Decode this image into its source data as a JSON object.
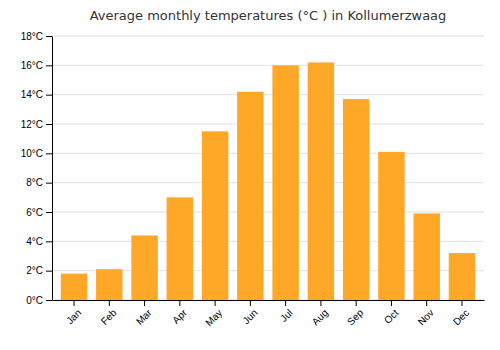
{
  "chart_data": {
    "type": "bar",
    "title": "Average monthly temperatures (°C ) in Kollumerzwaag",
    "categories": [
      "Jan",
      "Feb",
      "Mar",
      "Apr",
      "May",
      "Jun",
      "Jul",
      "Aug",
      "Sep",
      "Oct",
      "Nov",
      "Dec"
    ],
    "values": [
      1.8,
      2.1,
      4.4,
      7.0,
      11.5,
      14.2,
      16.0,
      16.2,
      13.7,
      10.1,
      5.9,
      3.2
    ],
    "color": "#FFA726",
    "ylim": [
      0,
      18
    ],
    "yticks": [
      {
        "value": 0,
        "label": "0°C"
      },
      {
        "value": 2,
        "label": "2°C"
      },
      {
        "value": 4,
        "label": "4°C"
      },
      {
        "value": 6,
        "label": "6°C"
      },
      {
        "value": 8,
        "label": "8°C"
      },
      {
        "value": 10,
        "label": "10°C"
      },
      {
        "value": 12,
        "label": "12°C"
      },
      {
        "value": 14,
        "label": "14°C"
      },
      {
        "value": 16,
        "label": "16°C"
      },
      {
        "value": 18,
        "label": "18°C"
      }
    ],
    "grid": true
  }
}
